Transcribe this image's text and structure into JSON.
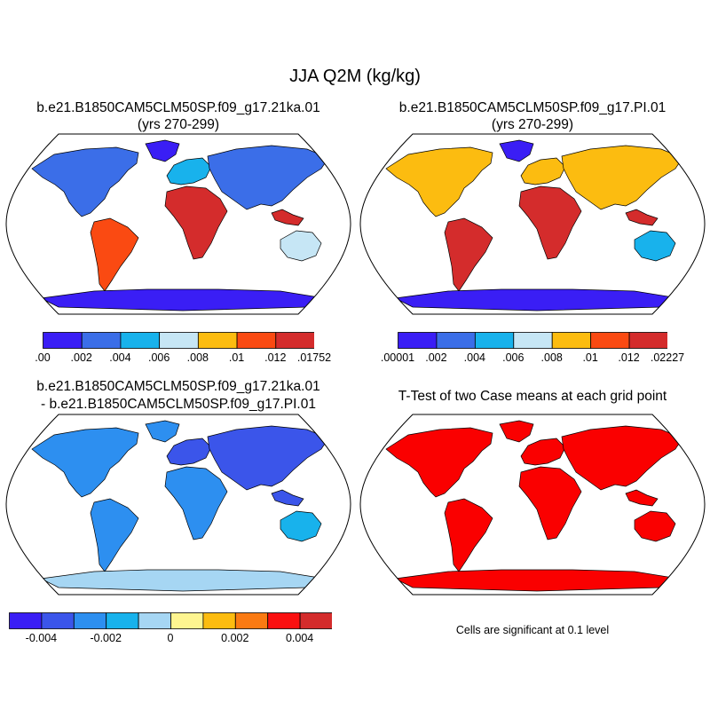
{
  "page_title": "JJA Q2M (kg/kg)",
  "colors": {
    "land_outline": "#000000",
    "ocean": "#ffffff",
    "frame": "#000000"
  },
  "chart_data": [
    {
      "type": "heatmap",
      "title": "b.e21.B1850CAM5CLM50SP.f09_g17.21ka.01",
      "subtitle": "(yrs 270-299)",
      "projection": "Robinson",
      "variable": "Q2M",
      "units": "kg/kg",
      "colorbar": {
        "colors": [
          "#3a1ef5",
          "#3b6ee8",
          "#18b2ec",
          "#c6e6f5",
          "#fcbc10",
          "#fa4a12",
          "#d42c2c"
        ],
        "tick_labels": [
          ".00",
          ".002",
          ".004",
          ".006",
          ".008",
          ".01",
          ".012",
          ".01752"
        ]
      }
    },
    {
      "type": "heatmap",
      "title": "b.e21.B1850CAM5CLM50SP.f09_g17.PI.01",
      "subtitle": "(yrs 270-299)",
      "projection": "Robinson",
      "variable": "Q2M",
      "units": "kg/kg",
      "colorbar": {
        "colors": [
          "#3a1ef5",
          "#3b6ee8",
          "#18b2ec",
          "#c6e6f5",
          "#fcbc10",
          "#fa4a12",
          "#d42c2c"
        ],
        "tick_labels": [
          ".00001",
          ".002",
          ".004",
          ".006",
          ".008",
          ".01",
          ".012",
          ".02227"
        ]
      }
    },
    {
      "type": "heatmap",
      "title": "b.e21.B1850CAM5CLM50SP.f09_g17.21ka.01",
      "subtitle": "- b.e21.B1850CAM5CLM50SP.f09_g17.PI.01",
      "projection": "Robinson",
      "variable": "Q2M difference",
      "units": "kg/kg",
      "colorbar": {
        "colors": [
          "#3a1ef5",
          "#3b55ea",
          "#2d8ff0",
          "#18b2ec",
          "#a6d6f3",
          "#fef590",
          "#fcbc10",
          "#fa7a12",
          "#fa1010",
          "#d42c2c"
        ],
        "tick_labels": [
          "-0.004",
          "-0.002",
          "0",
          "0.002",
          "0.004"
        ]
      }
    },
    {
      "type": "heatmap",
      "title": "T-Test of two Case means at each grid point",
      "projection": "Robinson",
      "significant_color": "#fa0000",
      "note": "Cells are significant at 0.1 level"
    }
  ]
}
